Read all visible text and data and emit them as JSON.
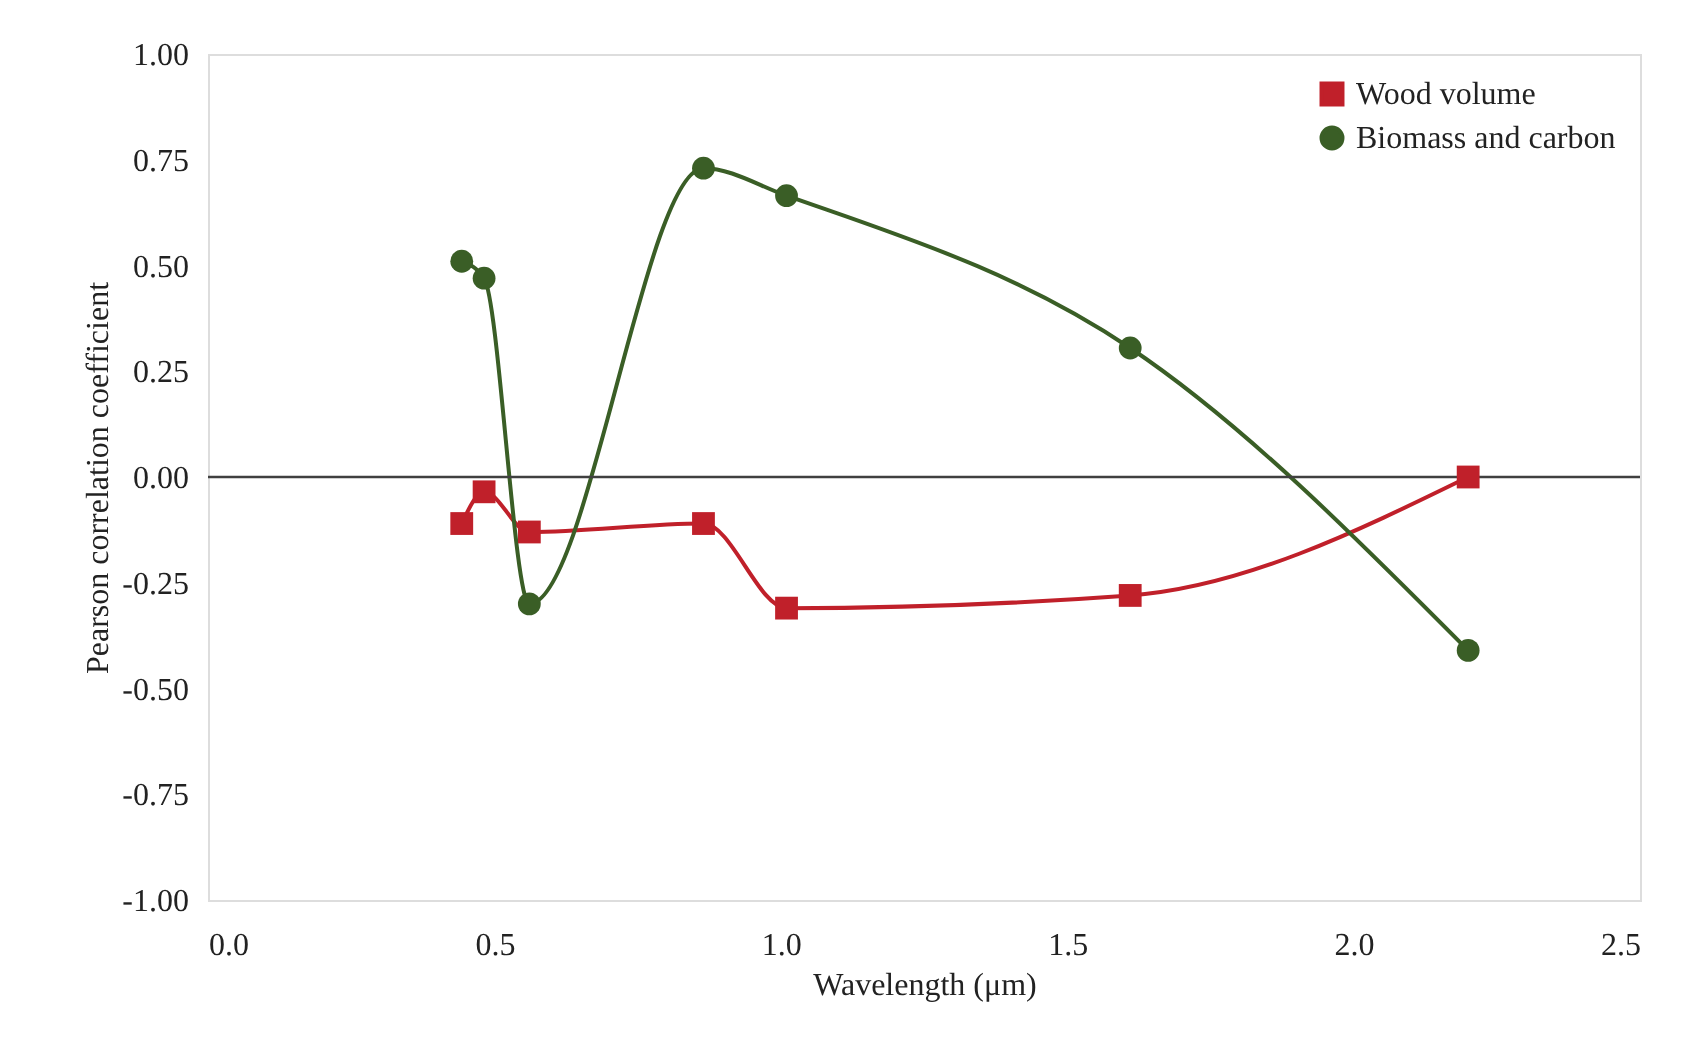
{
  "chart_data": {
    "type": "line",
    "xlabel": "Wavelength (μm)",
    "ylabel": "Pearson correlation coefficient",
    "xlim": [
      0,
      2.5
    ],
    "xticks": [
      {
        "value": 0,
        "label": "0.0"
      },
      0.5,
      {
        "value": 1,
        "label": "1.0"
      },
      1.5,
      {
        "value": 2,
        "label": "2.0"
      },
      2.5
    ],
    "ylim": [
      -1,
      1
    ],
    "yticks": [
      {
        "value": -1,
        "label": "-1.00"
      },
      -0.75,
      {
        "value": -0.5,
        "label": "-0.50"
      },
      -0.25,
      {
        "value": 0,
        "label": "0.00"
      },
      0.25,
      {
        "value": 0.5,
        "label": "0.50"
      },
      0.75,
      {
        "value": 1,
        "label": "1.00"
      }
    ],
    "x": [
      0.443,
      0.482,
      0.561,
      0.865,
      1.01,
      1.61,
      2.2
    ],
    "series": [
      {
        "name": "Wood volume",
        "color": "#c0202a",
        "marker": "square",
        "values": [
          -0.11,
          -0.035,
          -0.13,
          -0.11,
          -0.31,
          -0.28,
          0.0
        ]
      },
      {
        "name": "Biomass and carbon",
        "color": "#3a5e26",
        "marker": "circle",
        "values": [
          0.51,
          0.47,
          -0.3,
          0.73,
          0.665,
          0.305,
          -0.41
        ]
      }
    ],
    "ref_lines": [
      {
        "axis": "y",
        "value": 0,
        "color": "#404040"
      }
    ],
    "grid": false,
    "legend": "top right",
    "line_style": "solid"
  }
}
